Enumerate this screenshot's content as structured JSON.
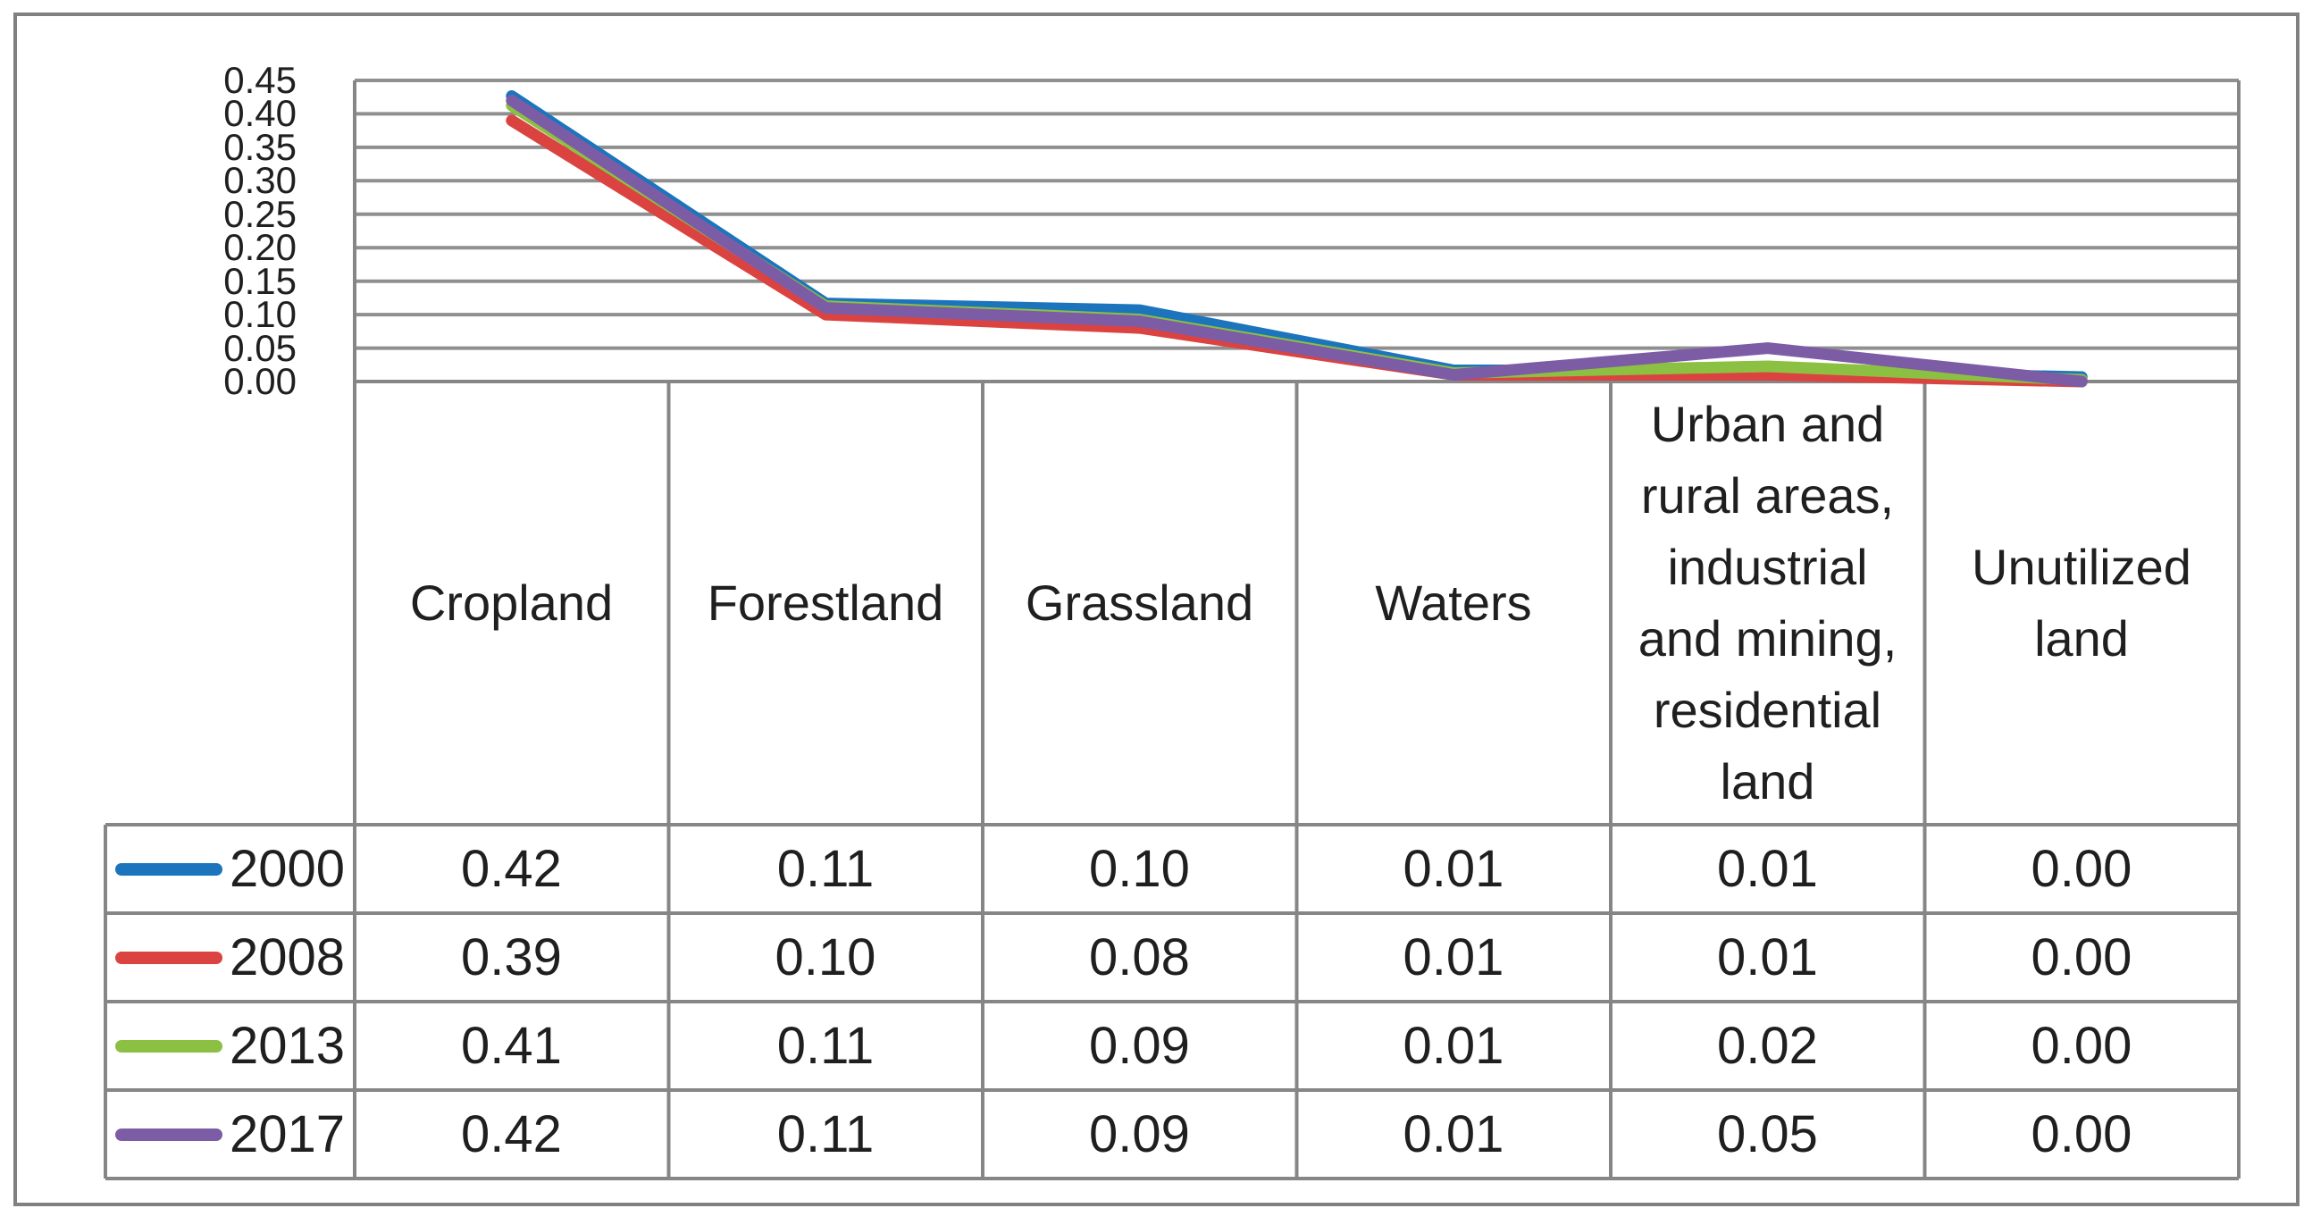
{
  "chart_data": {
    "type": "line",
    "categories": [
      "Cropland",
      "Forestland",
      "Grassland",
      "Waters",
      "Urban and rural areas, industrial and mining, residential land",
      "Unutilized land"
    ],
    "series": [
      {
        "name": "2000",
        "color": "#1C75BC",
        "values": [
          0.42,
          0.11,
          0.1,
          0.01,
          0.01,
          0.0
        ]
      },
      {
        "name": "2008",
        "color": "#DB4340",
        "values": [
          0.39,
          0.1,
          0.08,
          0.01,
          0.01,
          0.0
        ]
      },
      {
        "name": "2013",
        "color": "#8CC043",
        "values": [
          0.41,
          0.11,
          0.09,
          0.01,
          0.02,
          0.0
        ]
      },
      {
        "name": "2017",
        "color": "#7D5CA6",
        "values": [
          0.42,
          0.11,
          0.09,
          0.01,
          0.05,
          0.0
        ]
      }
    ],
    "y_ticks": [
      "0.45",
      "0.40",
      "0.35",
      "0.30",
      "0.25",
      "0.20",
      "0.15",
      "0.10",
      "0.05",
      "0.00"
    ],
    "ylim": [
      0,
      0.45
    ],
    "grid": "horizontal",
    "legend_position": "data-table-left"
  },
  "table": {
    "headers": [
      "Cropland",
      "Forestland",
      "Grassland",
      "Waters",
      "Urban and\nrural areas,\nindustrial\nand mining,\nresidential\nland",
      "Unutilized\nland"
    ],
    "rows": [
      {
        "year": "2000",
        "cells": [
          "0.42",
          "0.11",
          "0.10",
          "0.01",
          "0.01",
          "0.00"
        ]
      },
      {
        "year": "2008",
        "cells": [
          "0.39",
          "0.10",
          "0.08",
          "0.01",
          "0.01",
          "0.00"
        ]
      },
      {
        "year": "2013",
        "cells": [
          "0.41",
          "0.11",
          "0.09",
          "0.01",
          "0.02",
          "0.00"
        ]
      },
      {
        "year": "2017",
        "cells": [
          "0.42",
          "0.11",
          "0.09",
          "0.01",
          "0.05",
          "0.00"
        ]
      }
    ]
  }
}
